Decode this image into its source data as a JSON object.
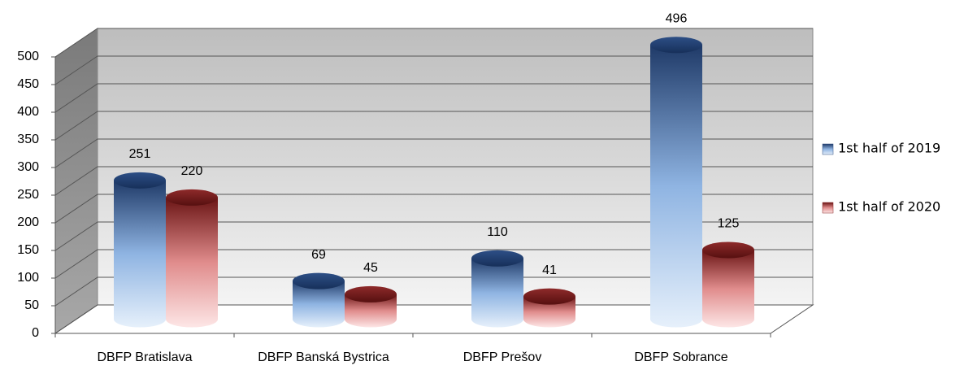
{
  "chart_data": {
    "type": "bar3d",
    "categories": [
      "DBFP Bratislava",
      "DBFP Banská Bystrica",
      "DBFP Prešov",
      "DBFP Sobrance"
    ],
    "series": [
      {
        "name": "1st half of 2019",
        "color": "#2a4a80",
        "values": [
          251,
          69,
          110,
          496
        ]
      },
      {
        "name": "1st half of 2020",
        "color": "#8a2424",
        "values": [
          220,
          45,
          41,
          125
        ]
      }
    ],
    "ylim": [
      0,
      500
    ],
    "yticks": [
      0,
      50,
      100,
      150,
      200,
      250,
      300,
      350,
      400,
      450,
      500
    ],
    "grid": true,
    "legend": "right"
  }
}
